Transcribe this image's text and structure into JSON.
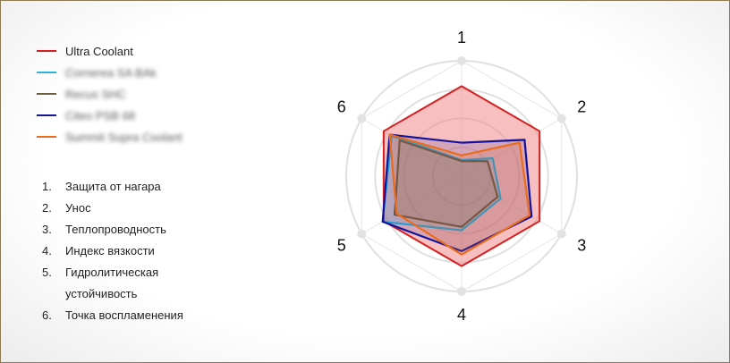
{
  "chart_data": {
    "type": "radar",
    "axes": [
      "1",
      "2",
      "3",
      "4",
      "5",
      "6"
    ],
    "axis_descriptions": [
      {
        "num": "1.",
        "text": "Защита от нагара"
      },
      {
        "num": "2.",
        "text": "Унос"
      },
      {
        "num": "3.",
        "text": "Теплопроводность"
      },
      {
        "num": "4.",
        "text": "Индекс вязкости"
      },
      {
        "num": "5.",
        "text": "Гидролитическая устойчивость"
      },
      {
        "num": "6.",
        "text": "Точка воспламенения"
      }
    ],
    "rmax": 100,
    "grid": true,
    "legend_position": "left",
    "series": [
      {
        "name": "Ultra Coolant",
        "color": "#d42020",
        "fill": "#f08a8a",
        "fill_opacity": 0.55,
        "values": [
          78,
          78,
          78,
          78,
          78,
          78
        ],
        "blurred": false
      },
      {
        "name": "Cornerea SA BAk",
        "color": "#27b5e0",
        "fill": "#27b5e0",
        "fill_opacity": 0.18,
        "values": [
          14,
          31,
          39,
          47,
          79,
          70
        ],
        "blurred": true
      },
      {
        "name": "Recus SHC",
        "color": "#6e5e3e",
        "fill": "#6e5e3e",
        "fill_opacity": 0.18,
        "values": [
          13,
          26,
          36,
          44,
          67,
          62
        ],
        "blurred": true
      },
      {
        "name": "Citeo PSB 68",
        "color": "#12129a",
        "fill": "#12129a",
        "fill_opacity": 0.15,
        "values": [
          29,
          63,
          70,
          65,
          79,
          72
        ],
        "blurred": true
      },
      {
        "name": "Summit Supra Coolant",
        "color": "#ea6c1c",
        "fill": "#ea6c1c",
        "fill_opacity": 0.18,
        "values": [
          18,
          58,
          68,
          68,
          65,
          72
        ],
        "blurred": true
      }
    ]
  }
}
